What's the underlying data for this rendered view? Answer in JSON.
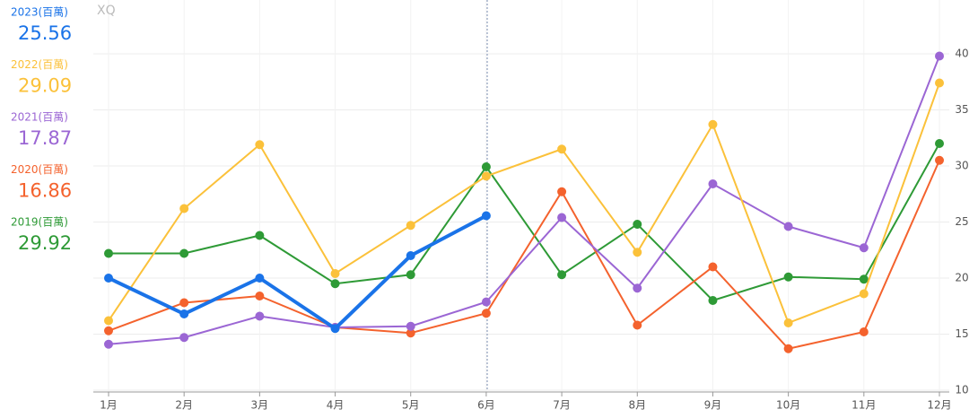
{
  "chart_data": {
    "type": "line",
    "watermark": "XQ",
    "categories": [
      "1月",
      "2月",
      "3月",
      "4月",
      "5月",
      "6月",
      "7月",
      "8月",
      "9月",
      "10月",
      "11月",
      "12月"
    ],
    "series": [
      {
        "name": "2023(百萬)",
        "color": "#1a73e8",
        "values": [
          20.0,
          16.8,
          20.0,
          15.5,
          22.0,
          25.56,
          null,
          null,
          null,
          null,
          null,
          null
        ]
      },
      {
        "name": "2022(百萬)",
        "color": "#fbc13a",
        "values": [
          16.2,
          26.2,
          31.9,
          20.4,
          24.7,
          29.09,
          31.5,
          22.3,
          33.7,
          16.0,
          18.6,
          37.4
        ]
      },
      {
        "name": "2021(百萬)",
        "color": "#9b66d4",
        "values": [
          14.1,
          14.7,
          16.6,
          15.6,
          15.7,
          17.87,
          25.4,
          19.1,
          28.4,
          24.6,
          22.7,
          39.8
        ]
      },
      {
        "name": "2020(百萬)",
        "color": "#f4622d",
        "values": [
          15.3,
          17.8,
          18.4,
          15.6,
          15.1,
          16.86,
          27.7,
          15.8,
          21.0,
          13.7,
          15.2,
          30.5
        ]
      },
      {
        "name": "2019(百萬)",
        "color": "#2e9a36",
        "values": [
          22.2,
          22.2,
          23.8,
          19.5,
          20.3,
          29.92,
          20.3,
          24.8,
          18.0,
          20.1,
          19.9,
          32.0
        ]
      }
    ],
    "ylim": [
      10,
      40
    ],
    "yticks": [
      10,
      15,
      20,
      25,
      30,
      35,
      40
    ],
    "grid": true
  }
}
